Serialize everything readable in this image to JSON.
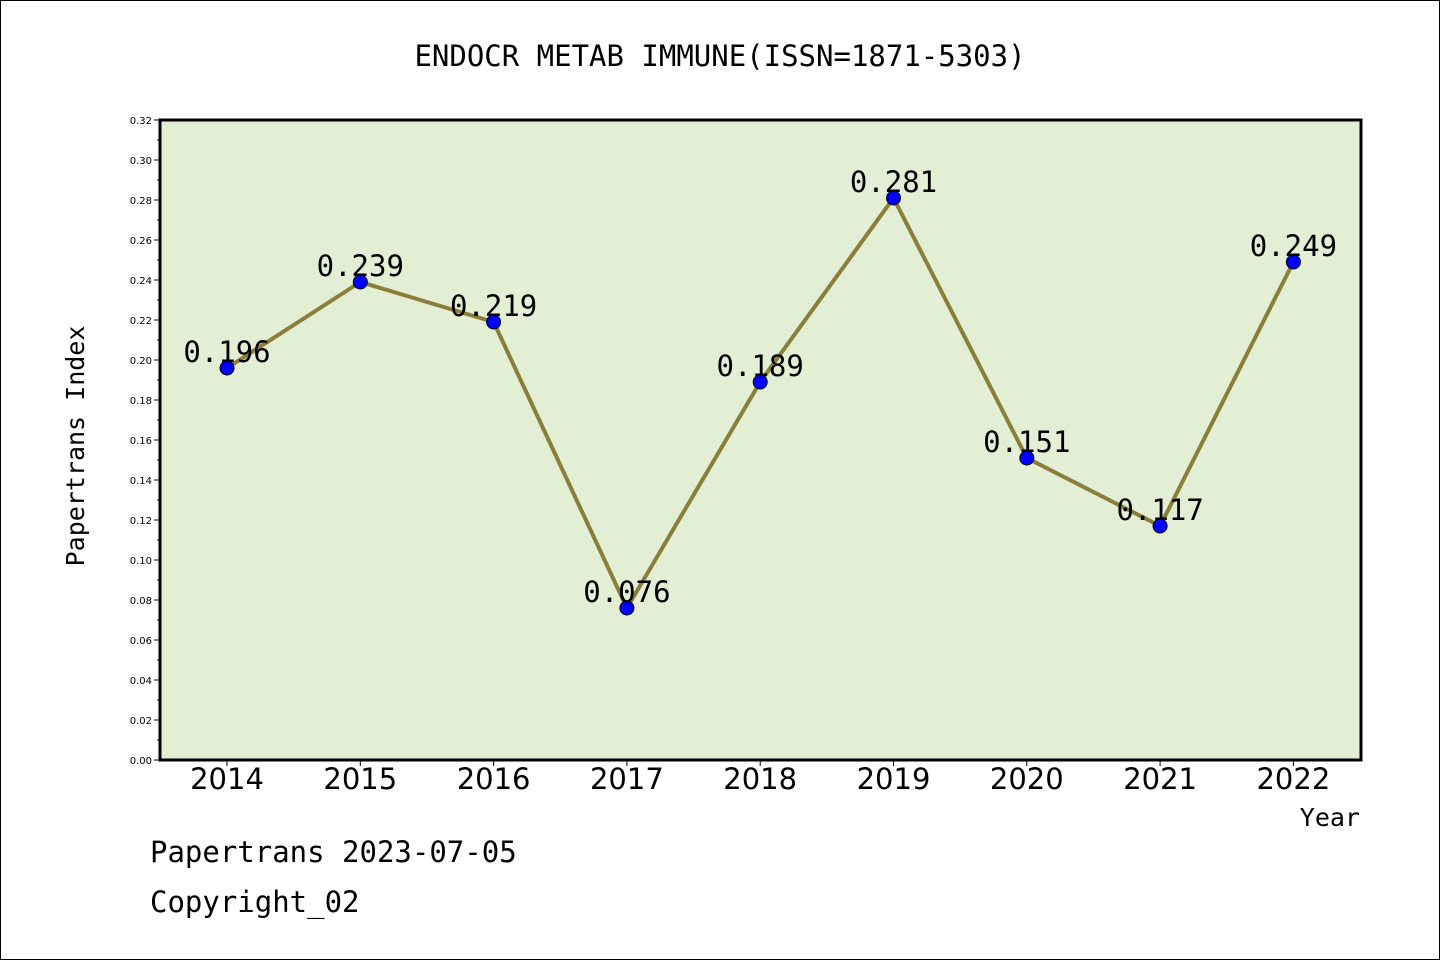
{
  "chart_data": {
    "type": "line",
    "title": "ENDOCR METAB IMMUNE(ISSN=1871-5303)",
    "xlabel": "Year",
    "ylabel": "Papertrans Index",
    "categories": [
      "2014",
      "2015",
      "2016",
      "2017",
      "2018",
      "2019",
      "2020",
      "2021",
      "2022"
    ],
    "values": [
      0.196,
      0.239,
      0.219,
      0.076,
      0.189,
      0.281,
      0.151,
      0.117,
      0.249
    ],
    "data_labels": [
      "0.196",
      "0.239",
      "0.219",
      "0.076",
      "0.189",
      "0.281",
      "0.151",
      "0.117",
      "0.249"
    ],
    "ylim": [
      0,
      0.32
    ],
    "yticks": [
      "0.00",
      "0.02",
      "0.04",
      "0.06",
      "0.08",
      "0.10",
      "0.12",
      "0.14",
      "0.16",
      "0.18",
      "0.20",
      "0.22",
      "0.24",
      "0.26",
      "0.28",
      "0.30",
      "0.32"
    ],
    "grid": false,
    "legend": "none",
    "colors": {
      "plot_background": "#e2efd5",
      "line": "#8b7d3a",
      "marker": "#0000ff"
    }
  },
  "footer": {
    "line1": "Papertrans 2023-07-05",
    "line2": "Copyright_02"
  }
}
